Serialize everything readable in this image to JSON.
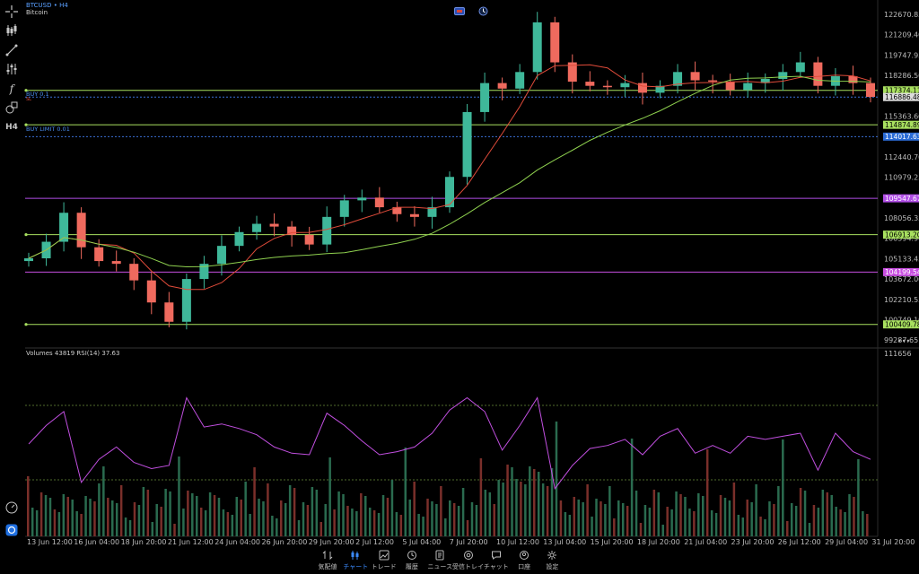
{
  "symbol": {
    "ticker": "BTCUSD",
    "sep": " • ",
    "timeframe": "H4",
    "name": "Bitcoin"
  },
  "toolbar_timeframe": "H4",
  "orders": {
    "buy": "BUY 0.1",
    "tp": "TP",
    "sl": "SL",
    "buy_limit": "BUY LIMIT 0.01"
  },
  "price_axis_labels": [
    "122670.85",
    "121209.40",
    "119747.95",
    "118286.50",
    "116825.05",
    "115363.60",
    "113902.15",
    "112440.70",
    "110979.25",
    "109517.80",
    "108056.35",
    "106594.90",
    "105133.45",
    "103672.00",
    "102210.55",
    "100749.10",
    "99287.65"
  ],
  "price_tags": [
    {
      "label": "117374.11",
      "bg": "#a8e05f",
      "fg": "#000000"
    },
    {
      "label": "116886.48",
      "bg": "#dcdcdc",
      "fg": "#000000"
    },
    {
      "label": "114874.89",
      "bg": "#a8e05f",
      "fg": "#000000"
    },
    {
      "label": "114017.63",
      "bg": "#2a6bd6",
      "fg": "#ffffff"
    },
    {
      "label": "109547.67",
      "bg": "#b14ee6",
      "fg": "#ffffff"
    },
    {
      "label": "106913.20",
      "bg": "#a8e05f",
      "fg": "#000000"
    },
    {
      "label": "104199.54",
      "bg": "#c84fe0",
      "fg": "#ffffff"
    },
    {
      "label": "100409.78",
      "bg": "#a8e05f",
      "fg": "#000000"
    }
  ],
  "indicator": {
    "label": "Volumes 43819 RSI(14) 37.63",
    "axis_label": "111656",
    "more": "•••"
  },
  "time_axis_labels": [
    "13 Jun 12:00",
    "16 Jun 04:00",
    "18 Jun 20:00",
    "21 Jun 12:00",
    "24 Jun 04:00",
    "26 Jun 20:00",
    "29 Jun 20:00",
    "2 Jul 12:00",
    "5 Jul 04:00",
    "7 Jul 20:00",
    "10 Jul 12:00",
    "13 Jul 04:00",
    "15 Jul 20:00",
    "18 Jul 20:00",
    "21 Jul 04:00",
    "23 Jul 20:00",
    "26 Jul 12:00",
    "29 Jul 04:00",
    "31 Jul 20:00"
  ],
  "nav": [
    {
      "label": "気配値",
      "icon": "quotes-icon"
    },
    {
      "label": "チャート",
      "icon": "chart-candles-icon"
    },
    {
      "label": "トレード",
      "icon": "trade-line-icon"
    },
    {
      "label": "履歴",
      "icon": "history-icon"
    },
    {
      "label": "ニュース",
      "icon": "news-icon"
    },
    {
      "label": "受信トレイ",
      "icon": "mailbox-icon"
    },
    {
      "label": "チャット",
      "icon": "chat-icon"
    },
    {
      "label": "口座",
      "icon": "account-icon"
    },
    {
      "label": "設定",
      "icon": "settings-icon"
    }
  ],
  "nav_active": "チャート",
  "colors": {
    "bull": "#3fb89a",
    "bear": "#ef6a5e",
    "ma_fast": "#e04b3a",
    "ma_slow": "#8fd14f",
    "rsi": "#c14fe0",
    "accent": "#3b8bff"
  },
  "chart_data": {
    "type": "candlestick",
    "symbol": "BTCUSD",
    "timeframe": "H4",
    "price_range": [
      98700,
      123400
    ],
    "approx_closes": [
      105200,
      106400,
      108500,
      106000,
      105000,
      104800,
      103600,
      102000,
      100600,
      103700,
      104800,
      106100,
      107100,
      107700,
      107500,
      106900,
      106200,
      108200,
      109400,
      109600,
      108900,
      108400,
      108200,
      108900,
      111100,
      115800,
      117900,
      117500,
      118700,
      122300,
      119400,
      118000,
      117700,
      117600,
      117900,
      117200,
      117700,
      118700,
      118100,
      118000,
      117400,
      117900,
      118200,
      118700,
      119400,
      117700,
      118400,
      117900,
      116900
    ],
    "rsi_period": 14,
    "rsi_last": 37.63,
    "volume_last": 43819,
    "horizontal_levels": [
      117374.11,
      116886.48,
      114874.89,
      114017.63,
      109547.67,
      106913.2,
      104199.54,
      100409.78
    ]
  }
}
